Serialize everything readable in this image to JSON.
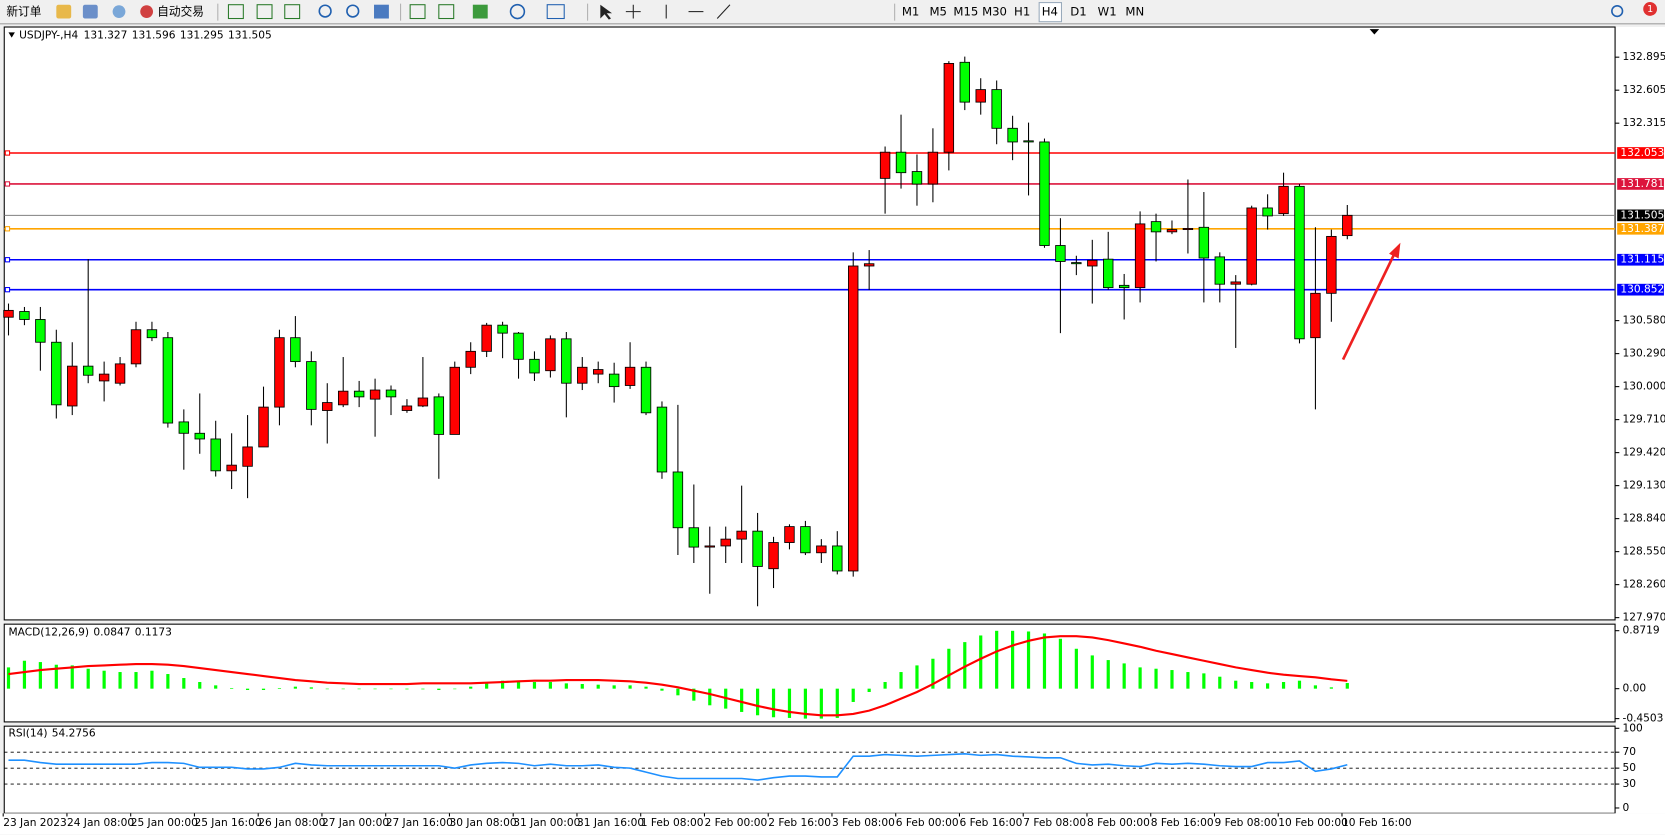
{
  "toolbar": {
    "new_order": "新订单",
    "auto_trading": "自动交易",
    "timeframes": [
      "M1",
      "M5",
      "M15",
      "M30",
      "H1",
      "H4",
      "D1",
      "W1",
      "MN"
    ],
    "alerts": "1"
  },
  "chart_data": [
    {
      "type": "candlestick",
      "title": "USDJPY-,H4",
      "up_color": "#ff0000",
      "down_color": "#00ff00",
      "categories": [
        "23 Jan 2023",
        null,
        null,
        null,
        "24 Jan 08:00",
        null,
        null,
        null,
        "25 Jan 00:00",
        null,
        null,
        null,
        "25 Jan 16:00",
        null,
        null,
        null,
        "26 Jan 08:00",
        null,
        null,
        null,
        "27 Jan 00:00",
        null,
        null,
        null,
        "27 Jan 16:00",
        null,
        null,
        null,
        "30 Jan 08:00",
        null,
        null,
        null,
        "31 Jan 00:00",
        null,
        null,
        null,
        "31 Jan 16:00",
        null,
        null,
        null,
        "1 Feb 08:00",
        null,
        null,
        null,
        "2 Feb 00:00",
        null,
        null,
        null,
        "2 Feb 16:00",
        null,
        null,
        null,
        "3 Feb 08:00",
        null,
        null,
        null,
        "6 Feb 00:00",
        null,
        null,
        null,
        "6 Feb 16:00",
        null,
        null,
        null,
        "7 Feb 08:00",
        null,
        null,
        null,
        "8 Feb 00:00",
        null,
        null,
        null,
        "8 Feb 16:00",
        null,
        null,
        null,
        "9 Feb 08:00",
        null,
        null,
        null,
        "10 Feb 00:00",
        null,
        null,
        null,
        "10 Feb 16:00"
      ],
      "open": [
        130.61,
        130.66,
        130.59,
        130.39,
        129.83,
        130.18,
        130.05,
        130.03,
        130.2,
        130.5,
        130.43,
        129.69,
        129.59,
        129.54,
        129.26,
        129.3,
        129.47,
        129.82,
        130.43,
        130.22,
        129.79,
        129.84,
        129.96,
        129.89,
        129.97,
        129.79,
        129.83,
        129.91,
        129.58,
        130.17,
        130.31,
        130.54,
        130.47,
        130.24,
        130.14,
        130.42,
        130.03,
        130.11,
        130.11,
        130.01,
        130.17,
        129.82,
        129.25,
        128.76,
        128.59,
        128.6,
        128.66,
        128.73,
        128.4,
        128.63,
        128.77,
        128.54,
        128.6,
        128.38,
        131.06,
        131.83,
        132.06,
        131.89,
        131.78,
        132.06,
        132.85,
        132.5,
        132.61,
        132.27,
        132.16,
        132.15,
        131.24,
        131.09,
        131.06,
        131.12,
        130.89,
        130.87,
        131.45,
        131.36,
        131.38,
        131.4,
        131.14,
        130.9,
        130.9,
        131.57,
        131.52,
        131.76,
        130.43,
        130.82,
        131.327
      ],
      "high": [
        130.73,
        130.7,
        130.7,
        130.5,
        130.39,
        131.12,
        130.22,
        130.26,
        130.57,
        130.57,
        130.48,
        129.8,
        129.94,
        129.7,
        129.59,
        129.75,
        130.0,
        130.5,
        130.62,
        130.31,
        130.03,
        130.26,
        130.05,
        130.07,
        130.01,
        129.89,
        130.26,
        129.94,
        130.22,
        130.39,
        130.56,
        130.57,
        130.48,
        130.31,
        130.45,
        130.48,
        130.26,
        130.22,
        130.21,
        130.39,
        130.22,
        129.87,
        129.84,
        129.14,
        128.77,
        128.77,
        129.13,
        128.89,
        128.68,
        128.79,
        128.82,
        128.66,
        128.73,
        131.18,
        131.2,
        132.11,
        132.39,
        132.04,
        132.27,
        132.86,
        132.9,
        132.71,
        132.69,
        132.38,
        132.32,
        132.18,
        131.48,
        131.15,
        131.29,
        131.36,
        130.99,
        131.54,
        131.52,
        131.46,
        131.82,
        131.71,
        131.18,
        130.98,
        131.59,
        131.69,
        131.88,
        131.78,
        131.4,
        131.38,
        131.596
      ],
      "low": [
        130.45,
        130.54,
        130.14,
        129.72,
        129.75,
        130.03,
        129.87,
        130.01,
        130.17,
        130.4,
        129.64,
        129.27,
        129.41,
        129.21,
        129.1,
        129.02,
        129.47,
        129.66,
        130.17,
        129.66,
        129.5,
        129.82,
        129.82,
        129.56,
        129.75,
        129.77,
        129.82,
        129.19,
        129.58,
        130.11,
        130.26,
        130.25,
        130.07,
        130.05,
        130.08,
        129.73,
        129.97,
        130.03,
        129.86,
        129.98,
        129.75,
        129.19,
        128.52,
        128.45,
        128.18,
        128.45,
        128.45,
        128.07,
        128.23,
        128.57,
        128.52,
        128.45,
        128.35,
        128.33,
        130.85,
        131.52,
        131.74,
        131.59,
        131.62,
        131.9,
        132.43,
        132.39,
        132.13,
        131.99,
        131.68,
        131.22,
        130.47,
        130.98,
        130.73,
        130.85,
        130.59,
        130.74,
        131.1,
        131.34,
        131.17,
        130.74,
        130.74,
        130.34,
        130.89,
        131.38,
        131.5,
        130.38,
        129.8,
        130.57,
        131.295
      ],
      "close": [
        130.67,
        130.59,
        130.39,
        129.84,
        130.18,
        130.1,
        130.11,
        130.2,
        130.5,
        130.43,
        129.68,
        129.59,
        129.54,
        129.26,
        129.31,
        129.47,
        129.82,
        130.43,
        130.22,
        129.8,
        129.86,
        129.96,
        129.91,
        129.97,
        129.91,
        129.83,
        129.9,
        129.58,
        130.17,
        130.31,
        130.54,
        130.47,
        130.24,
        130.12,
        130.42,
        130.03,
        130.17,
        130.15,
        130.0,
        130.17,
        129.77,
        129.25,
        128.76,
        128.59,
        128.6,
        128.66,
        128.73,
        128.42,
        128.63,
        128.77,
        128.54,
        128.6,
        128.38,
        131.06,
        131.08,
        132.06,
        131.88,
        131.78,
        132.06,
        132.84,
        132.5,
        132.61,
        132.27,
        132.15,
        132.15,
        131.24,
        131.1,
        131.08,
        131.11,
        130.87,
        130.87,
        131.43,
        131.36,
        131.38,
        131.39,
        131.13,
        130.9,
        130.92,
        131.57,
        131.5,
        131.76,
        130.42,
        130.82,
        131.32,
        131.505
      ],
      "ylim": [
        127.95,
        133.16
      ],
      "yticks": [
        132.895,
        132.605,
        132.315,
        {
          "value": 130.58,
          "label": "130.580"
        },
        {
          "value": 130.29,
          "label": "130.290"
        },
        {
          "value": 130,
          "label": "130.000"
        },
        {
          "value": 129.71,
          "label": "129.710"
        },
        {
          "value": 129.42,
          "label": "129.420"
        },
        {
          "value": 129.13,
          "label": "129.130"
        },
        {
          "value": 128.84,
          "label": "128.840"
        },
        {
          "value": 128.55,
          "label": "128.550"
        },
        {
          "value": 128.26,
          "label": "128.260"
        },
        {
          "value": 127.97,
          "label": "127.970"
        }
      ],
      "price_line_color": "#808080",
      "hlines": [
        {
          "value": 132.053,
          "color": "#ff0000"
        },
        {
          "value": 131.781,
          "color": "#dc143c"
        },
        {
          "value": 131.387,
          "color": "#ffa500"
        },
        {
          "value": 131.115,
          "color": "#0000ff"
        },
        {
          "value": 130.852,
          "color": "#0000ff"
        }
      ]
    },
    {
      "type": "macd",
      "title": "MACD(12,26,9)",
      "hist_color": "#00ff00",
      "signal_color": "#ff0000",
      "hist": [
        0.32,
        0.42,
        0.4,
        0.36,
        0.35,
        0.3,
        0.27,
        0.25,
        0.25,
        0.27,
        0.22,
        0.16,
        0.1,
        0.05,
        0.01,
        -0.02,
        -0.02,
        0.01,
        0.03,
        0.02,
        0,
        0,
        0,
        0,
        0,
        -0.01,
        -0.01,
        -0.02,
        0,
        0.03,
        0.08,
        0.12,
        0.12,
        0.1,
        0.1,
        0.08,
        0.07,
        0.06,
        0.05,
        0.05,
        0.03,
        -0.03,
        -0.1,
        -0.18,
        -0.25,
        -0.3,
        -0.35,
        -0.4,
        -0.43,
        -0.44,
        -0.45,
        -0.45,
        -0.44,
        -0.2,
        -0.05,
        0.1,
        0.25,
        0.35,
        0.45,
        0.6,
        0.7,
        0.8,
        0.87,
        0.87,
        0.86,
        0.83,
        0.75,
        0.6,
        0.5,
        0.43,
        0.38,
        0.32,
        0.3,
        0.28,
        0.25,
        0.23,
        0.18,
        0.12,
        0.1,
        0.08,
        0.1,
        0.12,
        0.05,
        0.02,
        0.0847
      ],
      "signal": [
        0.22,
        0.25,
        0.28,
        0.3,
        0.32,
        0.34,
        0.35,
        0.36,
        0.37,
        0.37,
        0.36,
        0.34,
        0.31,
        0.28,
        0.25,
        0.22,
        0.19,
        0.16,
        0.13,
        0.11,
        0.09,
        0.08,
        0.07,
        0.07,
        0.07,
        0.07,
        0.08,
        0.08,
        0.08,
        0.08,
        0.09,
        0.1,
        0.11,
        0.12,
        0.12,
        0.13,
        0.13,
        0.13,
        0.12,
        0.11,
        0.09,
        0.06,
        0.02,
        -0.03,
        -0.08,
        -0.14,
        -0.2,
        -0.26,
        -0.31,
        -0.35,
        -0.38,
        -0.4,
        -0.4,
        -0.38,
        -0.33,
        -0.25,
        -0.15,
        -0.05,
        0.07,
        0.2,
        0.33,
        0.45,
        0.56,
        0.65,
        0.72,
        0.77,
        0.79,
        0.79,
        0.77,
        0.73,
        0.68,
        0.63,
        0.57,
        0.52,
        0.47,
        0.42,
        0.37,
        0.32,
        0.28,
        0.24,
        0.21,
        0.19,
        0.17,
        0.14,
        0.1173
      ],
      "ylim": [
        -0.5,
        0.97
      ],
      "yticks": [
        0.8719,
        {
          "value": 0,
          "label": "0.00"
        },
        -0.4503
      ]
    },
    {
      "type": "rsi",
      "title": "RSI(14)",
      "color": "#1e90ff",
      "values": [
        60,
        60,
        57,
        55,
        55,
        55,
        55,
        55,
        55,
        57,
        57,
        56,
        51,
        51,
        51,
        49,
        49,
        51,
        56,
        54,
        53,
        53,
        53,
        53,
        53,
        53,
        53,
        53,
        50,
        54,
        56,
        57,
        56,
        53,
        55,
        53,
        53,
        54,
        51,
        50,
        45,
        40,
        37,
        37,
        37,
        37,
        37,
        35,
        38,
        40,
        40,
        39,
        39,
        65,
        65,
        67,
        66,
        65,
        66,
        67,
        68,
        66,
        67,
        65,
        64,
        63,
        63,
        56,
        54,
        55,
        53,
        52,
        56,
        55,
        56,
        55,
        53,
        52,
        52,
        57,
        57,
        59,
        46,
        49,
        54.2756
      ],
      "ylim": [
        0,
        100
      ],
      "yticks": [
        100,
        70,
        50,
        30,
        0
      ],
      "levels": [
        70,
        50,
        30
      ]
    }
  ]
}
